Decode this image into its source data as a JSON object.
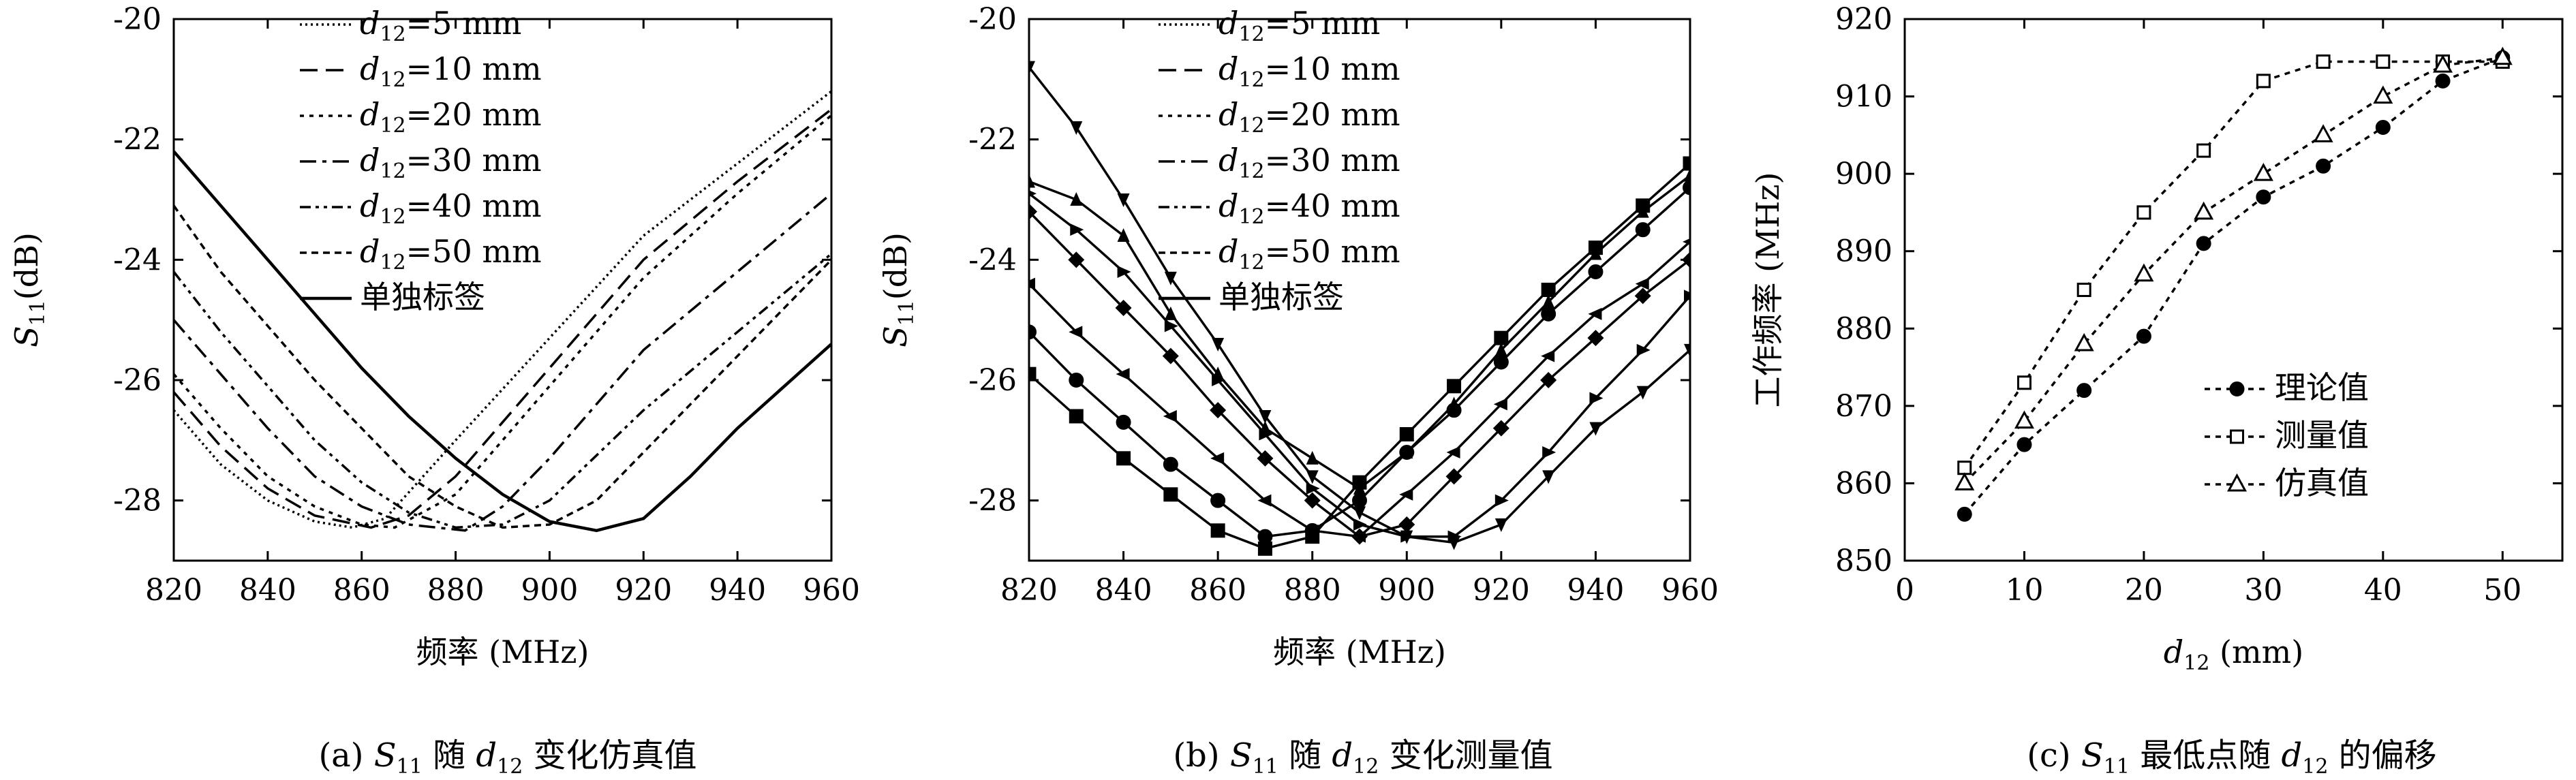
{
  "chart_data": [
    {
      "type": "line",
      "caption_parts": {
        "p1": "(a) ",
        "S": "S",
        "sub": "11",
        "p2": " 随 ",
        "d": "d",
        "dsub": "12",
        "p3": " 变化仿真值"
      },
      "xlabel": "频率 (MHz)",
      "ylabel_parts": {
        "S": "S",
        "sub": "11",
        "rest": "(dB)"
      },
      "xlim": [
        820,
        960
      ],
      "ylim": [
        -29,
        -20
      ],
      "xticks": [
        "820",
        "840",
        "860",
        "880",
        "900",
        "920",
        "940",
        "960"
      ],
      "yticks": [
        "-20",
        "-22",
        "-24",
        "-26",
        "-28"
      ],
      "legend_position": "top",
      "series": [
        {
          "name": "d12=5 mm",
          "name_parts": {
            "d": "d",
            "sub": "12",
            "rest": "=5 mm"
          },
          "x": [
            820,
            830,
            840,
            850,
            858,
            865,
            880,
            900,
            920,
            940,
            960
          ],
          "y": [
            -26.5,
            -27.4,
            -28.0,
            -28.35,
            -28.45,
            -28.3,
            -27.0,
            -25.3,
            -23.6,
            -22.4,
            -21.2
          ]
        },
        {
          "name": "d12=10 mm",
          "name_parts": {
            "d": "d",
            "sub": "12",
            "rest": "=10 mm"
          },
          "x": [
            820,
            830,
            840,
            850,
            862,
            870,
            880,
            900,
            920,
            940,
            960
          ],
          "y": [
            -26.2,
            -27.1,
            -27.8,
            -28.25,
            -28.45,
            -28.25,
            -27.6,
            -25.8,
            -24.0,
            -22.7,
            -21.5
          ]
        },
        {
          "name": "d12=20 mm",
          "name_parts": {
            "d": "d",
            "sub": "12",
            "rest": "=20 mm"
          },
          "x": [
            820,
            830,
            840,
            850,
            860,
            867,
            880,
            900,
            920,
            940,
            960
          ],
          "y": [
            -25.9,
            -26.8,
            -27.6,
            -28.1,
            -28.4,
            -28.45,
            -27.9,
            -26.1,
            -24.3,
            -22.9,
            -21.6
          ]
        },
        {
          "name": "d12=30 mm",
          "name_parts": {
            "d": "d",
            "sub": "12",
            "rest": "=30 mm"
          },
          "x": [
            820,
            830,
            840,
            850,
            860,
            870,
            882,
            890,
            900,
            920,
            940,
            960
          ],
          "y": [
            -25.0,
            -25.9,
            -26.8,
            -27.6,
            -28.1,
            -28.4,
            -28.5,
            -28.1,
            -27.3,
            -25.5,
            -24.2,
            -22.9
          ]
        },
        {
          "name": "d12=40 mm",
          "name_parts": {
            "d": "d",
            "sub": "12",
            "rest": "=40 mm"
          },
          "x": [
            820,
            830,
            840,
            850,
            860,
            870,
            880,
            890,
            900,
            920,
            940,
            960
          ],
          "y": [
            -24.2,
            -25.2,
            -26.1,
            -27.0,
            -27.7,
            -28.2,
            -28.45,
            -28.4,
            -28.0,
            -26.5,
            -25.2,
            -23.9
          ]
        },
        {
          "name": "d12=50 mm",
          "name_parts": {
            "d": "d",
            "sub": "12",
            "rest": "=50 mm"
          },
          "x": [
            820,
            830,
            840,
            850,
            860,
            870,
            880,
            890,
            900,
            910,
            920,
            940,
            960
          ],
          "y": [
            -23.1,
            -24.2,
            -25.1,
            -26.0,
            -26.8,
            -27.6,
            -28.1,
            -28.45,
            -28.4,
            -28.0,
            -27.2,
            -25.6,
            -24.0
          ]
        },
        {
          "name": "单独标签",
          "name_parts": {
            "d": "",
            "sub": "",
            "rest": "单独标签"
          },
          "x": [
            820,
            830,
            840,
            850,
            860,
            870,
            880,
            890,
            900,
            910,
            920,
            930,
            940,
            950,
            960
          ],
          "y": [
            -22.2,
            -23.1,
            -24.0,
            -24.9,
            -25.8,
            -26.6,
            -27.3,
            -27.9,
            -28.35,
            -28.5,
            -28.3,
            -27.6,
            -26.8,
            -26.1,
            -25.4
          ]
        }
      ]
    },
    {
      "type": "line",
      "caption_parts": {
        "p1": "(b) ",
        "S": "S",
        "sub": "11",
        "p2": " 随 ",
        "d": "d",
        "dsub": "12",
        "p3": " 变化测量值"
      },
      "xlabel": "频率 (MHz)",
      "ylabel_parts": {
        "S": "S",
        "sub": "11",
        "rest": "(dB)"
      },
      "xlim": [
        820,
        960
      ],
      "ylim": [
        -29,
        -20
      ],
      "xticks": [
        "820",
        "840",
        "860",
        "880",
        "900",
        "920",
        "940",
        "960"
      ],
      "yticks": [
        "-20",
        "-22",
        "-24",
        "-26",
        "-28"
      ],
      "legend_position": "top",
      "series": [
        {
          "name": "d12=5 mm",
          "name_parts": {
            "d": "d",
            "sub": "12",
            "rest": "=5 mm"
          },
          "marker": "square",
          "x": [
            820,
            830,
            840,
            850,
            860,
            870,
            880,
            890,
            900,
            910,
            920,
            930,
            940,
            950,
            960
          ],
          "y": [
            -25.9,
            -26.6,
            -27.3,
            -27.9,
            -28.5,
            -28.8,
            -28.6,
            -27.7,
            -26.9,
            -26.1,
            -25.3,
            -24.5,
            -23.8,
            -23.1,
            -22.4
          ]
        },
        {
          "name": "d12=10 mm",
          "name_parts": {
            "d": "d",
            "sub": "12",
            "rest": "=10 mm"
          },
          "marker": "circle",
          "x": [
            820,
            830,
            840,
            850,
            860,
            870,
            880,
            890,
            900,
            910,
            920,
            930,
            940,
            950,
            960
          ],
          "y": [
            -25.2,
            -26.0,
            -26.7,
            -27.4,
            -28.0,
            -28.6,
            -28.5,
            -28.0,
            -27.2,
            -26.5,
            -25.7,
            -24.9,
            -24.2,
            -23.5,
            -22.8
          ]
        },
        {
          "name": "d12=20 mm",
          "name_parts": {
            "d": "d",
            "sub": "12",
            "rest": "=20 mm"
          },
          "marker": "triangle-left",
          "x": [
            820,
            830,
            840,
            850,
            860,
            870,
            880,
            890,
            900,
            910,
            920,
            930,
            940,
            950,
            960
          ],
          "y": [
            -24.4,
            -25.2,
            -25.9,
            -26.6,
            -27.3,
            -28.0,
            -28.5,
            -28.6,
            -27.9,
            -27.2,
            -26.4,
            -25.6,
            -24.9,
            -24.4,
            -23.7
          ]
        },
        {
          "name": "d12=30 mm",
          "name_parts": {
            "d": "d",
            "sub": "12",
            "rest": "=30 mm"
          },
          "marker": "diamond",
          "x": [
            820,
            830,
            840,
            850,
            860,
            870,
            880,
            890,
            900,
            910,
            920,
            930,
            940,
            950,
            960
          ],
          "y": [
            -23.2,
            -24.0,
            -24.8,
            -25.6,
            -26.5,
            -27.3,
            -28.0,
            -28.6,
            -28.4,
            -27.6,
            -26.8,
            -26.0,
            -25.3,
            -24.6,
            -24.0
          ]
        },
        {
          "name": "d12=40 mm",
          "name_parts": {
            "d": "d",
            "sub": "12",
            "rest": "=40 mm"
          },
          "marker": "triangle-right",
          "x": [
            820,
            830,
            840,
            850,
            860,
            870,
            880,
            890,
            900,
            910,
            920,
            930,
            940,
            950,
            960
          ],
          "y": [
            -22.9,
            -23.5,
            -24.2,
            -25.1,
            -26.0,
            -26.9,
            -27.8,
            -28.4,
            -28.6,
            -28.6,
            -28.0,
            -27.2,
            -26.3,
            -25.5,
            -24.6
          ]
        },
        {
          "name": "d12=50 mm",
          "name_parts": {
            "d": "d",
            "sub": "12",
            "rest": "=50 mm"
          },
          "marker": "triangle-down",
          "x": [
            820,
            830,
            840,
            850,
            860,
            870,
            880,
            890,
            900,
            910,
            920,
            930,
            940,
            950,
            960
          ],
          "y": [
            -20.8,
            -21.8,
            -23.0,
            -24.3,
            -25.4,
            -26.6,
            -27.6,
            -28.2,
            -28.6,
            -28.7,
            -28.4,
            -27.6,
            -26.8,
            -26.2,
            -25.5
          ]
        },
        {
          "name": "单独标签",
          "name_parts": {
            "d": "",
            "sub": "",
            "rest": "单独标签"
          },
          "marker": "triangle-up",
          "x": [
            820,
            830,
            840,
            850,
            860,
            870,
            880,
            890,
            900,
            910,
            920,
            930,
            940,
            950,
            960
          ],
          "y": [
            -22.7,
            -23.0,
            -23.6,
            -24.9,
            -25.9,
            -26.8,
            -27.3,
            -27.8,
            -27.2,
            -26.4,
            -25.5,
            -24.7,
            -23.9,
            -23.2,
            -22.6
          ]
        }
      ]
    },
    {
      "type": "line",
      "caption_parts": {
        "p1": "(c) ",
        "S": "S",
        "sub": "11",
        "p2": " 最低点随 ",
        "d": "d",
        "dsub": "12",
        "p3": " 的偏移"
      },
      "xlabel_parts": {
        "d": "d",
        "sub": "12",
        "rest": " (mm)"
      },
      "ylabel": "工作频率 (MHz)",
      "xlim": [
        0,
        55
      ],
      "ylim": [
        850,
        920
      ],
      "xticks": [
        "0",
        "10",
        "20",
        "30",
        "40",
        "50"
      ],
      "yticks": [
        "850",
        "860",
        "870",
        "880",
        "890",
        "900",
        "910",
        "920"
      ],
      "legend_position": "right-middle",
      "series": [
        {
          "name": "理论值",
          "marker": "filled-circle",
          "x": [
            5,
            10,
            15,
            20,
            25,
            30,
            35,
            40,
            45,
            50
          ],
          "y": [
            856,
            865,
            872,
            879,
            891,
            897,
            901,
            906,
            912,
            915
          ]
        },
        {
          "name": "测量值",
          "marker": "open-square",
          "x": [
            5,
            10,
            15,
            20,
            25,
            30,
            35,
            40,
            45,
            50
          ],
          "y": [
            862,
            873,
            885,
            895,
            903,
            912,
            914.5,
            914.5,
            914.5,
            914.5
          ]
        },
        {
          "name": "仿真值",
          "marker": "open-triangle",
          "x": [
            5,
            10,
            15,
            20,
            25,
            30,
            35,
            40,
            45,
            50
          ],
          "y": [
            860,
            868,
            878,
            887,
            895,
            900,
            905,
            910,
            914,
            915
          ]
        }
      ]
    }
  ]
}
